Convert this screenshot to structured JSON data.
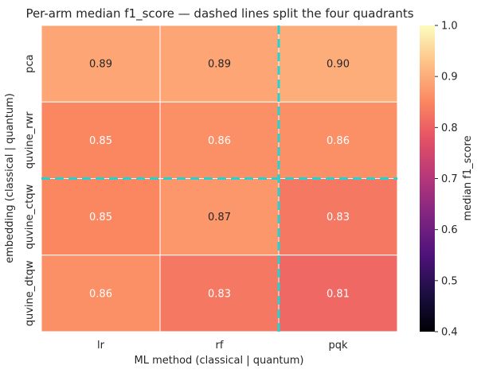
{
  "chart_data": {
    "type": "heatmap",
    "title": "Per-arm median f1_score — dashed lines split the four quadrants",
    "xlabel": "ML method  (classical | quantum)",
    "ylabel": "embedding  (classical | quantum)",
    "x_categories": [
      "lr",
      "rf",
      "pqk"
    ],
    "y_categories": [
      "pca",
      "quvine_rwr",
      "quvine_ctqw",
      "quvine_dtqw"
    ],
    "values": [
      [
        0.89,
        0.89,
        0.9
      ],
      [
        0.85,
        0.86,
        0.86
      ],
      [
        0.85,
        0.87,
        0.83
      ],
      [
        0.86,
        0.83,
        0.81
      ]
    ],
    "cell_labels": [
      [
        "0.89",
        "0.89",
        "0.90"
      ],
      [
        "0.85",
        "0.86",
        "0.86"
      ],
      [
        "0.85",
        "0.87",
        "0.83"
      ],
      [
        "0.86",
        "0.83",
        "0.81"
      ]
    ],
    "colormap": "magma",
    "colorbar": {
      "label": "median f1_score",
      "vmin": 0.4,
      "vmax": 1.0,
      "tick_values": [
        0.4,
        0.5,
        0.6,
        0.7,
        0.8,
        0.9,
        1.0
      ],
      "tick_labels": [
        "0.4",
        "0.5",
        "0.6",
        "0.7",
        "0.8",
        "0.9",
        "1.0"
      ]
    },
    "quadrant_split": {
      "after_column": 2,
      "after_row": 2,
      "line_color": "#22d3d6",
      "line_style": "dashed"
    },
    "grid": false
  }
}
